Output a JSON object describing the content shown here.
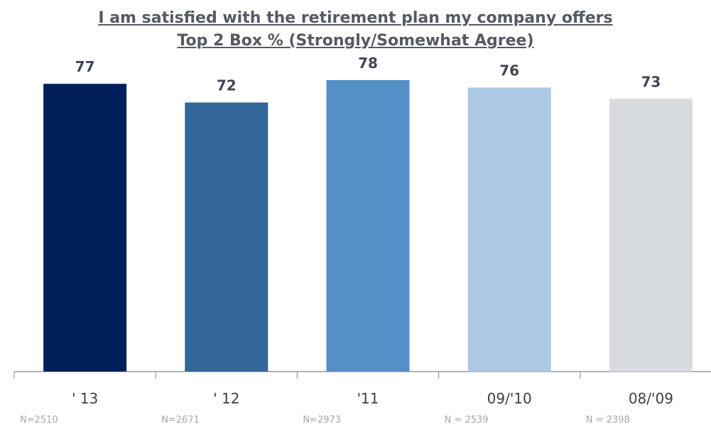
{
  "chart_data": {
    "type": "bar",
    "title": "I am satisfied with the retirement plan my company offers",
    "subtitle": "Top 2 Box % (Strongly/Somewhat Agree)",
    "categories": [
      "' 13",
      "' 12",
      "'11",
      "09/'10",
      "08/'09"
    ],
    "values": [
      77,
      72,
      78,
      76,
      73
    ],
    "colors": [
      "#001f5b",
      "#336699",
      "#558fc7",
      "#acc8e2",
      "#d7dbe0"
    ],
    "sample_sizes": [
      "N=2510",
      "N=2671",
      "N=2973",
      "N = 2539",
      "N = 2398"
    ],
    "ylim": [
      0,
      100
    ],
    "grid": false,
    "legend": "none",
    "xlabel": "",
    "ylabel": ""
  },
  "colors": {
    "title": "#555a63",
    "value_label": "#404652",
    "axis": "#9a9a9a",
    "tick_label": "#404040",
    "sample_label": "#a7a7a7"
  }
}
